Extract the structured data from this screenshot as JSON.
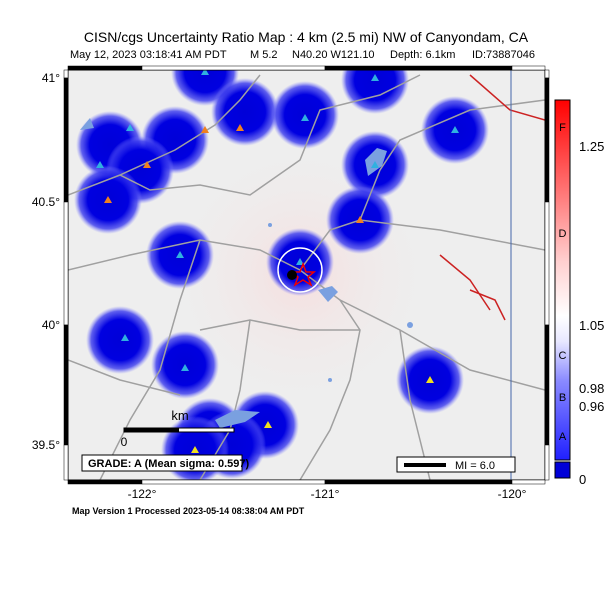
{
  "header": {
    "title": "CISN/cgs Uncertainty Ratio Map : 4 km (2.5 mi) NW of Canyondam, CA",
    "subtitle": [
      "May 12, 2023 03:18:41 AM PDT",
      "M 5.2",
      "N40.20 W121.10",
      "Depth: 6.1km",
      "ID:73887046"
    ]
  },
  "map": {
    "lat_labels": [
      "41°",
      "40.5°",
      "40°",
      "39.5°"
    ],
    "lon_labels": [
      "-122°",
      "-121°",
      "-120°"
    ],
    "scale_bar": {
      "unit": "km",
      "zero": "0"
    },
    "grade": "GRADE: A (Mean sigma: 0.597)",
    "legend": "MI = 6.0"
  },
  "colorbar": {
    "letters": [
      "F",
      "D",
      "C",
      "B",
      "A"
    ],
    "numbers": [
      "1.25",
      "1.05",
      "0.98",
      "0.96",
      "0"
    ]
  },
  "footer": "Map Version 1 Processed 2023-05-14 08:38:04 AM PDT"
}
